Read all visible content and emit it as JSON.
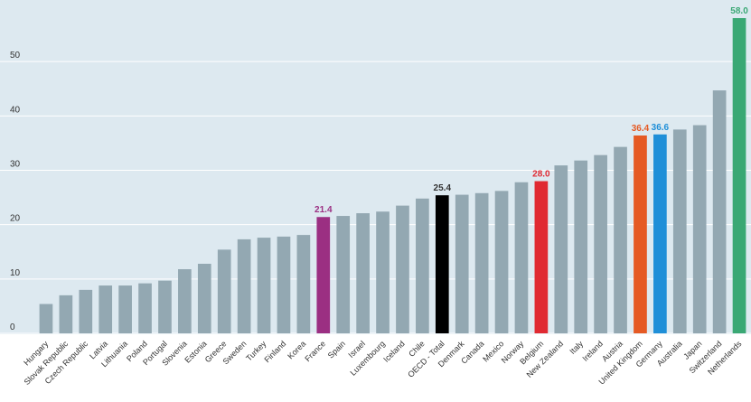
{
  "chart_data": {
    "type": "bar",
    "title": "",
    "xlabel": "",
    "ylabel": "",
    "ylim": [
      0,
      60
    ],
    "yticks": [
      0,
      10,
      20,
      30,
      40,
      50
    ],
    "grid": true,
    "categories": [
      "Hungary",
      "Slovak Republic",
      "Czech Republic",
      "Latvia",
      "Lithuania",
      "Poland",
      "Portugal",
      "Slovenia",
      "Estonia",
      "Greece",
      "Sweden",
      "Turkey",
      "Finland",
      "Korea",
      "France",
      "Spain",
      "Israel",
      "Luxembourg",
      "Iceland",
      "Chile",
      "OECD - Total",
      "Denmark",
      "Canada",
      "Mexico",
      "Norway",
      "Belgium",
      "New Zealand",
      "Italy",
      "Ireland",
      "Austria",
      "United Kingdom",
      "Germany",
      "Australia",
      "Japan",
      "Switzerland",
      "Netherlands"
    ],
    "values": [
      5.4,
      7.0,
      8.0,
      8.8,
      8.8,
      9.2,
      9.7,
      11.8,
      12.8,
      15.4,
      17.3,
      17.6,
      17.8,
      18.1,
      21.4,
      21.6,
      22.1,
      22.4,
      23.5,
      24.8,
      25.4,
      25.5,
      25.8,
      26.2,
      27.8,
      28.0,
      30.9,
      31.8,
      32.8,
      34.3,
      36.4,
      36.6,
      37.5,
      38.3,
      44.7,
      58.0
    ],
    "colors": {
      "default": "#93a8b2",
      "background": "#dde9f0",
      "grid": "#ffffff",
      "highlights": {
        "France": "#9b2f82",
        "OECD - Total": "#000000",
        "Belgium": "#e02a32",
        "United Kingdom": "#e55a24",
        "Germany": "#1f8fd8",
        "Netherlands": "#3aa874"
      },
      "label_text": {
        "France": "#9b2f82",
        "OECD - Total": "#333333",
        "Belgium": "#e02a32",
        "United Kingdom": "#e55a24",
        "Germany": "#1f8fd8",
        "Netherlands": "#3aa874"
      }
    },
    "data_labels": {
      "France": "21.4",
      "OECD - Total": "25.4",
      "Belgium": "28.0",
      "United Kingdom": "36.4",
      "Germany": "36.6",
      "Netherlands": "58.0"
    }
  }
}
